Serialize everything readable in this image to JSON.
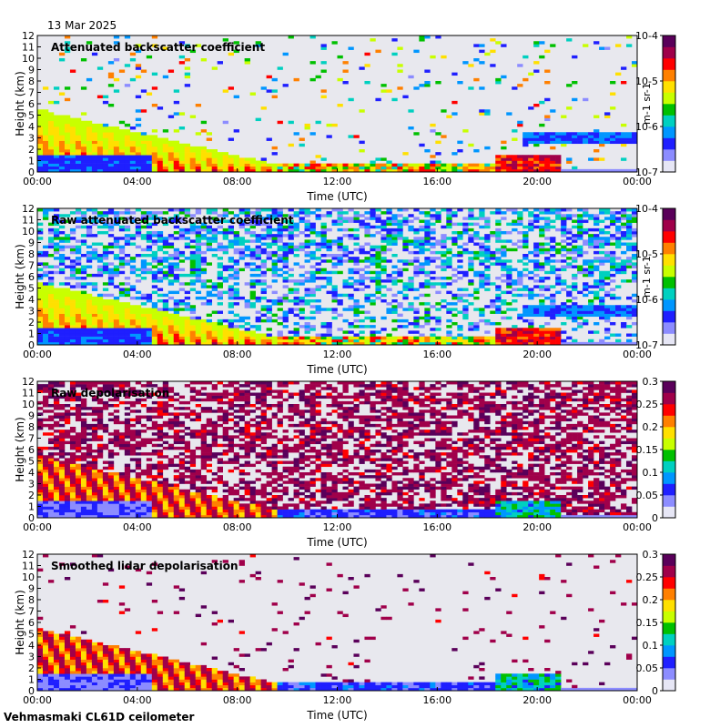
{
  "date": "13 Mar 2025",
  "footer": "Vehmasmaki CL61D ceilometer",
  "colors": {
    "background": "#ffffff",
    "plot_background": "#e8e8ee",
    "colormap": [
      "#e6e6f5",
      "#8c8cff",
      "#1f1fff",
      "#0096ff",
      "#00d0c0",
      "#00c000",
      "#c8ff00",
      "#ffe000",
      "#ff8000",
      "#ff0000",
      "#a0004a",
      "#5a005a"
    ]
  },
  "chart_data": [
    {
      "type": "heatmap",
      "title": "Attenuated backscatter coefficient",
      "xlabel": "Time (UTC)",
      "ylabel": "Height (km)",
      "x_ticks": [
        "00:00",
        "04:00",
        "08:00",
        "12:00",
        "16:00",
        "20:00",
        "00:00"
      ],
      "y_ticks": [
        "0",
        "1",
        "2",
        "3",
        "4",
        "5",
        "6",
        "7",
        "8",
        "9",
        "10",
        "11",
        "12"
      ],
      "ylim": [
        0,
        12
      ],
      "xlim_hours": [
        0,
        24
      ],
      "colorbar": {
        "scale": "log",
        "labels": [
          "10-7",
          "10-6",
          "10-5",
          "10-4"
        ],
        "unit": "m-1 sr-1"
      },
      "field": "backscatter",
      "noise": "low",
      "features": [
        {
          "name": "boundary layer aerosol",
          "start_hour": 0,
          "end_hour": 9.5,
          "top_km": 5.5,
          "trend": "decreasing"
        },
        {
          "name": "low cloud layer",
          "start_hour": 9.5,
          "end_hour": 18,
          "height_km": 0.5
        },
        {
          "name": "evening aerosol",
          "start_hour": 18.5,
          "end_hour": 21,
          "height_km": 1.0
        },
        {
          "name": "thin layer",
          "start_hour": 19.5,
          "end_hour": 24,
          "height_km": 3.0
        }
      ]
    },
    {
      "type": "heatmap",
      "title": "Raw attenuated backscatter coefficient",
      "xlabel": "Time (UTC)",
      "ylabel": "Height (km)",
      "x_ticks": [
        "00:00",
        "04:00",
        "08:00",
        "12:00",
        "16:00",
        "20:00",
        "00:00"
      ],
      "y_ticks": [
        "0",
        "1",
        "2",
        "3",
        "4",
        "5",
        "6",
        "7",
        "8",
        "9",
        "10",
        "11",
        "12"
      ],
      "ylim": [
        0,
        12
      ],
      "xlim_hours": [
        0,
        24
      ],
      "colorbar": {
        "scale": "log",
        "labels": [
          "10-7",
          "10-6",
          "10-5",
          "10-4"
        ],
        "unit": "m-1 sr-1"
      },
      "field": "backscatter",
      "noise": "high"
    },
    {
      "type": "heatmap",
      "title": "Raw depolarisation",
      "xlabel": "Time (UTC)",
      "ylabel": "Height (km)",
      "x_ticks": [
        "00:00",
        "04:00",
        "08:00",
        "12:00",
        "16:00",
        "20:00",
        "00:00"
      ],
      "y_ticks": [
        "0",
        "1",
        "2",
        "3",
        "4",
        "5",
        "6",
        "7",
        "8",
        "9",
        "10",
        "11",
        "12"
      ],
      "ylim": [
        0,
        12
      ],
      "xlim_hours": [
        0,
        24
      ],
      "colorbar": {
        "scale": "linear",
        "range": [
          0,
          0.3
        ],
        "labels": [
          "0",
          "0.05",
          "0.1",
          "0.15",
          "0.2",
          "0.25",
          "0.3"
        ],
        "unit": ""
      },
      "field": "depolarisation",
      "noise": "high"
    },
    {
      "type": "heatmap",
      "title": "Smoothed lidar depolarisation",
      "xlabel": "Time (UTC)",
      "ylabel": "Height (km)",
      "x_ticks": [
        "00:00",
        "04:00",
        "08:00",
        "12:00",
        "16:00",
        "20:00",
        "00:00"
      ],
      "y_ticks": [
        "0",
        "1",
        "2",
        "3",
        "4",
        "5",
        "6",
        "7",
        "8",
        "9",
        "10",
        "11",
        "12"
      ],
      "ylim": [
        0,
        12
      ],
      "xlim_hours": [
        0,
        24
      ],
      "colorbar": {
        "scale": "linear",
        "range": [
          0,
          0.3
        ],
        "labels": [
          "0",
          "0.05",
          "0.1",
          "0.15",
          "0.2",
          "0.25",
          "0.3"
        ],
        "unit": ""
      },
      "field": "depolarisation",
      "noise": "low"
    }
  ]
}
